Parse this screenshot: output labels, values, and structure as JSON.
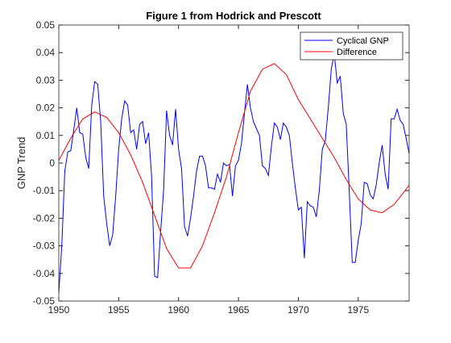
{
  "chart_data": {
    "type": "line",
    "title": "Figure 1 from Hodrick and Prescott",
    "y_label": "GNP Trend",
    "xlim": [
      1950,
      1979.25
    ],
    "xticks": [
      1950,
      1955,
      1960,
      1965,
      1970,
      1975
    ],
    "ylim": [
      -0.05,
      0.05
    ],
    "yticks": [
      -0.05,
      -0.04,
      -0.03,
      -0.02,
      -0.01,
      0,
      0.01,
      0.02,
      0.03,
      0.04,
      0.05
    ],
    "grid": false,
    "legend_position": "northeast",
    "series": [
      {
        "name": "Cyclical GNP",
        "color": "#0000ff",
        "x": [
          1950,
          1950.25,
          1950.5,
          1950.75,
          1951,
          1951.25,
          1951.5,
          1951.75,
          1952,
          1952.25,
          1952.5,
          1952.75,
          1953,
          1953.25,
          1953.5,
          1953.75,
          1954,
          1954.25,
          1954.5,
          1954.75,
          1955,
          1955.25,
          1955.5,
          1955.75,
          1956,
          1956.25,
          1956.5,
          1956.75,
          1957,
          1957.25,
          1957.5,
          1957.75,
          1958,
          1958.25,
          1958.5,
          1958.75,
          1959,
          1959.25,
          1959.5,
          1959.75,
          1960,
          1960.25,
          1960.5,
          1960.75,
          1961,
          1961.25,
          1961.5,
          1961.75,
          1962,
          1962.25,
          1962.5,
          1962.75,
          1963,
          1963.25,
          1963.5,
          1963.75,
          1964,
          1964.25,
          1964.5,
          1964.75,
          1965,
          1965.25,
          1965.5,
          1965.75,
          1966,
          1966.25,
          1966.5,
          1966.75,
          1967,
          1967.25,
          1967.5,
          1967.75,
          1968,
          1968.25,
          1968.5,
          1968.75,
          1969,
          1969.25,
          1969.5,
          1969.75,
          1970,
          1970.25,
          1970.5,
          1970.75,
          1971,
          1971.25,
          1971.5,
          1971.75,
          1972,
          1972.25,
          1972.5,
          1972.75,
          1973,
          1973.25,
          1973.5,
          1973.75,
          1974,
          1974.25,
          1974.5,
          1974.75,
          1975,
          1975.25,
          1975.5,
          1975.75,
          1976,
          1976.25,
          1976.5,
          1976.75,
          1977,
          1977.25,
          1977.5,
          1977.75,
          1978,
          1978.25,
          1978.5,
          1978.75,
          1979,
          1979.25
        ],
        "values": [
          -0.047,
          -0.03,
          -0.003,
          0.004,
          0.0045,
          0.012,
          0.02,
          0.011,
          0.0105,
          0.002,
          -0.002,
          0.021,
          0.0295,
          0.0285,
          0.015,
          -0.012,
          -0.022,
          -0.03,
          -0.026,
          -0.012,
          0.005,
          0.016,
          0.0225,
          0.021,
          0.011,
          0.012,
          0.005,
          0.014,
          0.015,
          0.007,
          0.011,
          -0.005,
          -0.041,
          -0.0415,
          -0.025,
          -0.01,
          0.019,
          0.01,
          0.0065,
          0.0195,
          0.005,
          -0.002,
          -0.023,
          -0.0265,
          -0.02,
          -0.012,
          -0.003,
          0.0025,
          0.0025,
          -0.001,
          -0.009,
          -0.009,
          -0.0095,
          -0.004,
          -0.007,
          0,
          -0.001,
          -0.0005,
          -0.012,
          -0.001,
          0.001,
          0.007,
          0.018,
          0.0285,
          0.02,
          0.015,
          0.0125,
          0.01,
          -0.001,
          -0.002,
          -0.0045,
          0.006,
          0.0145,
          0.013,
          0.0085,
          0.0145,
          0.013,
          0.01,
          0,
          -0.009,
          -0.017,
          -0.016,
          -0.0345,
          -0.014,
          -0.0155,
          -0.016,
          -0.0195,
          -0.01,
          0.005,
          0.008,
          0.02,
          0.034,
          0.0395,
          0.029,
          0.0315,
          0.018,
          0.014,
          -0.01,
          -0.036,
          -0.036,
          -0.028,
          -0.022,
          -0.007,
          -0.0075,
          -0.0115,
          -0.013,
          -0.008,
          0,
          0.0065,
          -0.004,
          -0.0095,
          0.016,
          0.016,
          0.0195,
          0.0155,
          0.014,
          0.009,
          0.0035
        ]
      },
      {
        "name": "Difference",
        "color": "#ff0000",
        "x": [
          1950,
          1951,
          1952,
          1953,
          1954,
          1955,
          1956,
          1957,
          1958,
          1959,
          1960,
          1961,
          1962,
          1963,
          1964,
          1965,
          1966,
          1967,
          1968,
          1969,
          1970,
          1971,
          1972,
          1973,
          1974,
          1975,
          1976,
          1977,
          1978,
          1979,
          1979.25
        ],
        "values": [
          0.001,
          0.009,
          0.016,
          0.0185,
          0.0165,
          0.011,
          0.003,
          -0.007,
          -0.019,
          -0.031,
          -0.038,
          -0.038,
          -0.03,
          -0.018,
          -0.005,
          0.011,
          0.026,
          0.034,
          0.036,
          0.032,
          0.023,
          0.016,
          0.009,
          0.002,
          -0.006,
          -0.013,
          -0.017,
          -0.018,
          -0.015,
          -0.0095,
          -0.008
        ]
      }
    ]
  }
}
